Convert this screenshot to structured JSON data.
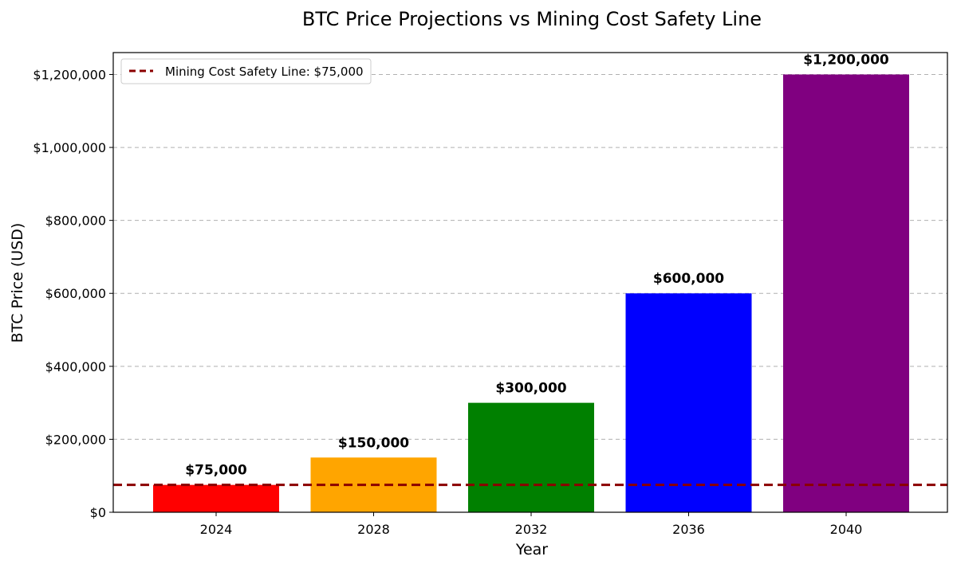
{
  "chart_data": {
    "type": "bar",
    "title": "BTC Price Projections vs Mining Cost Safety Line",
    "xlabel": "Year",
    "ylabel": "BTC Price (USD)",
    "categories": [
      "2024",
      "2028",
      "2032",
      "2036",
      "2040"
    ],
    "values": [
      75000,
      150000,
      300000,
      600000,
      1200000
    ],
    "bar_labels": [
      "$75,000",
      "$150,000",
      "$300,000",
      "$600,000",
      "$1,200,000"
    ],
    "bar_colors": [
      "#ff0000",
      "#ffa500",
      "#008000",
      "#0000ff",
      "#800080"
    ],
    "ylim": [
      0,
      1260000
    ],
    "yticks": [
      0,
      200000,
      400000,
      600000,
      800000,
      1000000,
      1200000
    ],
    "ytick_labels": [
      "$0",
      "$200,000",
      "$400,000",
      "$600,000",
      "$800,000",
      "$1,000,000",
      "$1,200,000"
    ],
    "grid": "y-dashed",
    "reference_line": {
      "value": 75000,
      "label": "Mining Cost Safety Line: $75,000",
      "color": "#8b0000",
      "style": "dashed"
    },
    "legend_position": "top-left"
  }
}
